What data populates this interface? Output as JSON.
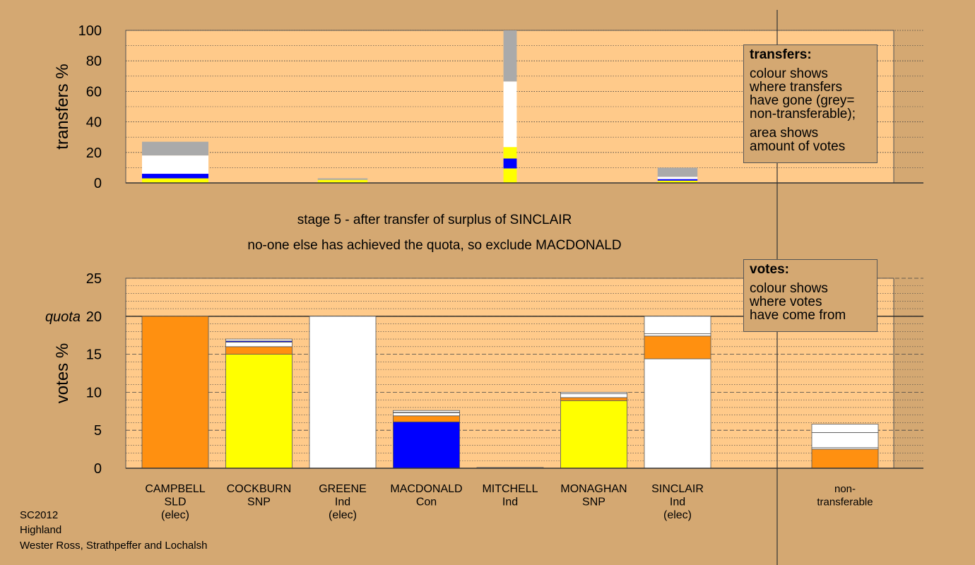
{
  "captions": {
    "line1": "stage 5 - after transfer of surplus of SINCLAIR",
    "line2": "no-one else has achieved the quota, so exclude MACDONALD"
  },
  "legends": {
    "transfers": {
      "title": "transfers:",
      "lines1": [
        "colour shows",
        "where transfers",
        "have gone (grey=",
        "non-transferable);"
      ],
      "lines2": [
        "area shows",
        "amount of votes"
      ]
    },
    "votes": {
      "title": "votes:",
      "lines": [
        "colour shows",
        "where votes",
        "have come from"
      ]
    }
  },
  "footer": {
    "line1": "SC2012",
    "line2": "Highland",
    "line3": "Wester Ross, Strathpeffer and Lochalsh"
  },
  "colors": {
    "background": "#d4a872",
    "plot_bg": "#ffca8a",
    "SLD": "#ff9010",
    "SNP": "#ffff00",
    "Ind": "#ffffff",
    "Con": "#0000ff",
    "non_transferable": "#aaaaaa"
  },
  "chart_data": [
    {
      "type": "bar",
      "stacked": true,
      "ylabel": "transfers %",
      "ylim": [
        0,
        100
      ],
      "yticks": [
        0,
        20,
        40,
        60,
        80,
        100
      ],
      "note": "stacked segments in order from bottom: SNP, Con, SLD, Ind, non-transferable",
      "bars": [
        {
          "slot": 0,
          "width_scale": 1.0,
          "segments": [
            [
              "SNP",
              3
            ],
            [
              "Con",
              3
            ],
            [
              "Ind",
              12
            ],
            [
              "non_transferable",
              9
            ]
          ]
        },
        {
          "slot": 2,
          "width_scale": 0.75,
          "segments": [
            [
              "SNP",
              2
            ],
            [
              "non_transferable",
              1
            ]
          ]
        },
        {
          "slot": 4,
          "width_scale": 0.2,
          "segments": [
            [
              "SNP",
              9.5
            ],
            [
              "Con",
              6.5
            ],
            [
              "SNP",
              7.5
            ],
            [
              "Ind",
              43
            ],
            [
              "non_transferable",
              33.5
            ]
          ]
        },
        {
          "slot": 6,
          "width_scale": 0.6,
          "segments": [
            [
              "SNP",
              1.5
            ],
            [
              "Con",
              1
            ],
            [
              "Ind",
              1.5
            ],
            [
              "non_transferable",
              6
            ]
          ]
        }
      ]
    },
    {
      "type": "bar",
      "stacked": true,
      "ylabel": "votes %",
      "ylim": [
        0,
        25
      ],
      "yticks": [
        0,
        5,
        10,
        15,
        20,
        25
      ],
      "quota": 20,
      "quota_label": "quota",
      "categories": [
        [
          "CAMPBELL",
          "SLD",
          "(elec)"
        ],
        [
          "COCKBURN",
          "SNP"
        ],
        [
          "GREENE",
          "Ind",
          "(elec)"
        ],
        [
          "MACDONALD",
          "Con"
        ],
        [
          "MITCHELL",
          "Ind"
        ],
        [
          "MONAGHAN",
          "SNP"
        ],
        [
          "SINCLAIR",
          "Ind",
          "(elec)"
        ],
        [],
        [
          "non-",
          "transferable"
        ]
      ],
      "bars": [
        {
          "slot": 0,
          "segments": [
            [
              "SLD",
              20
            ]
          ]
        },
        {
          "slot": 1,
          "segments": [
            [
              "SNP",
              15
            ],
            [
              "SLD",
              1
            ],
            [
              "Ind",
              0.6
            ],
            [
              "Con",
              0.15
            ],
            [
              "Ind",
              0.25
            ]
          ]
        },
        {
          "slot": 2,
          "segments": [
            [
              "Ind",
              20
            ]
          ]
        },
        {
          "slot": 3,
          "segments": [
            [
              "Con",
              6.1
            ],
            [
              "SLD",
              0.8
            ],
            [
              "Ind",
              0.4
            ],
            [
              "Con",
              0.05
            ],
            [
              "Ind",
              0.25
            ]
          ]
        },
        {
          "slot": 4,
          "segments": [
            [
              "Ind",
              0.1
            ]
          ]
        },
        {
          "slot": 5,
          "segments": [
            [
              "SNP",
              8.9
            ],
            [
              "SLD",
              0.4
            ],
            [
              "Ind",
              0.5
            ],
            [
              "Ind",
              0.2
            ]
          ]
        },
        {
          "slot": 6,
          "segments": [
            [
              "Ind",
              14.4
            ],
            [
              "SLD",
              3
            ],
            [
              "Ind",
              0.3
            ],
            [
              "Ind",
              2.3
            ]
          ]
        },
        {
          "slot": 8,
          "segments": [
            [
              "SLD",
              2.5
            ],
            [
              "Ind",
              0.2
            ],
            [
              "Ind",
              2
            ],
            [
              "Ind",
              1.1
            ]
          ]
        }
      ]
    }
  ]
}
